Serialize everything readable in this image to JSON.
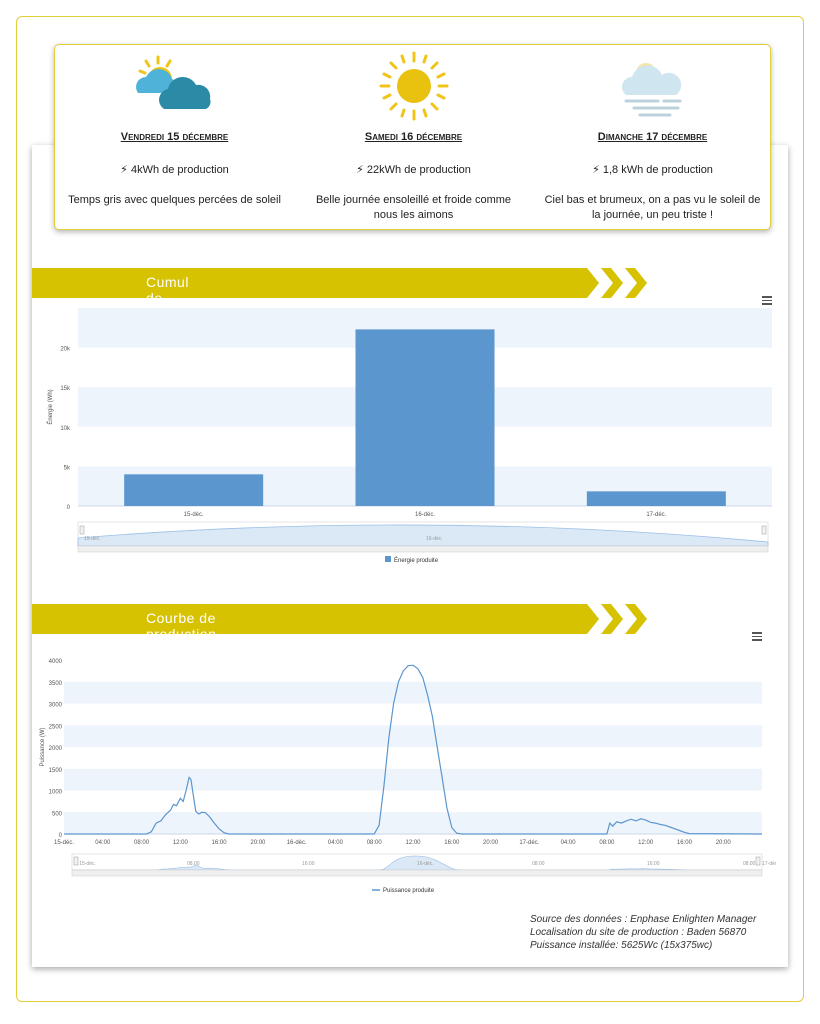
{
  "weather": [
    {
      "date": "Vendredi 15 décembre",
      "production": "4kWh de production",
      "description": "Temps gris avec quelques percées de soleil",
      "icon": "sun-cloud-icon"
    },
    {
      "date": "Samedi 16 décembre",
      "production": "22kWh de production",
      "description": "Belle journée ensoleillé et froide comme nous les aimons",
      "icon": "sun-icon"
    },
    {
      "date": "Dimanche 17 décembre",
      "production": "1,8 kWh de production",
      "description": "Ciel bas et brumeux, on a pas vu le soleil de la journée, un peu triste !",
      "icon": "fog-cloud-icon"
    }
  ],
  "section1": {
    "title": "Cumul de l'énergie produite sur la journée"
  },
  "section2": {
    "title": "Courbe de production au fil de la journée"
  },
  "source": {
    "line1": "Source des données : Enphase Enlighten Manager",
    "line2": "Localisation du site de production : Baden 56870",
    "line3": "Puissance installée: 5625Wc (15x375wc)"
  },
  "colors": {
    "accent": "#d6c200",
    "bar": "#5b96cf",
    "band": "#eef4fb"
  },
  "chart_data": [
    {
      "type": "bar",
      "categories": [
        "15-déc.",
        "16-déc.",
        "17-déc."
      ],
      "series": [
        {
          "name": "Énergie produite",
          "values": [
            4000,
            22300,
            1850
          ]
        }
      ],
      "ylabel": "Énergie (Wh)",
      "yticks": [
        0,
        5000,
        10000,
        15000,
        20000
      ],
      "ytick_labels": [
        "0",
        "5k",
        "10k",
        "15k",
        "20k"
      ],
      "ylim": [
        0,
        25000
      ],
      "navigator_labels": [
        "15-déc.",
        "16-déc."
      ],
      "legend": "bottom-center"
    },
    {
      "type": "line",
      "ylabel": "Puissance (W)",
      "yticks": [
        0,
        500,
        1000,
        1500,
        2000,
        2500,
        3000,
        3500,
        4000
      ],
      "ylim": [
        0,
        4000
      ],
      "xlim": [
        0,
        72
      ],
      "xtick_labels": [
        "15-déc.",
        "04:00",
        "08:00",
        "12:00",
        "16:00",
        "20:00",
        "16-déc.",
        "04:00",
        "08:00",
        "12:00",
        "16:00",
        "20:00",
        "17-déc.",
        "04:00",
        "08:00",
        "12:00",
        "16:00",
        "20:00"
      ],
      "navigator_labels": [
        "15-déc.",
        "08:00",
        "16:00",
        "16-déc.",
        "08:00",
        "16:00",
        "17-déc.",
        "08:00"
      ],
      "series": [
        {
          "name": "Puissance produite",
          "x": [
            0,
            8.5,
            9,
            9.5,
            10,
            10.5,
            11,
            11.3,
            11.6,
            12,
            12.3,
            12.6,
            12.9,
            13.1,
            13.3,
            13.6,
            13.9,
            14.2,
            14.6,
            15,
            15.5,
            16,
            16.5,
            17,
            32,
            32.5,
            33,
            33.5,
            34,
            34.5,
            35,
            35.5,
            36,
            36.5,
            37,
            37.5,
            38,
            38.5,
            39,
            39.5,
            40,
            40.5,
            41,
            56,
            56.3,
            56.6,
            57,
            57.5,
            58,
            58.5,
            59,
            59.5,
            60,
            60.5,
            61,
            61.5,
            62,
            62.5,
            63,
            63.5,
            64,
            64.5,
            72
          ],
          "y": [
            0,
            0,
            50,
            250,
            300,
            450,
            550,
            680,
            650,
            820,
            750,
            1000,
            1300,
            1250,
            950,
            520,
            460,
            500,
            490,
            400,
            250,
            120,
            30,
            0,
            0,
            200,
            1100,
            2200,
            3000,
            3500,
            3750,
            3870,
            3880,
            3800,
            3600,
            3200,
            2700,
            2000,
            1300,
            600,
            150,
            20,
            0,
            0,
            250,
            180,
            280,
            250,
            300,
            340,
            300,
            350,
            320,
            270,
            250,
            220,
            200,
            160,
            120,
            80,
            40,
            10,
            0
          ]
        }
      ],
      "legend": "bottom-center"
    }
  ]
}
